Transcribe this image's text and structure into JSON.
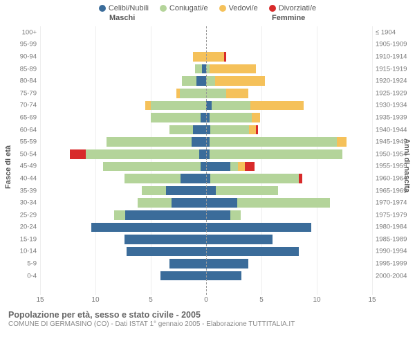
{
  "legend": [
    {
      "label": "Celibi/Nubili",
      "color": "#3b6c9a"
    },
    {
      "label": "Coniugati/e",
      "color": "#b4d49a"
    },
    {
      "label": "Vedovi/e",
      "color": "#f5c15a"
    },
    {
      "label": "Divorziati/e",
      "color": "#d82a2a"
    }
  ],
  "headers": {
    "male": "Maschi",
    "female": "Femmine"
  },
  "y_left_title": "Fasce di età",
  "y_right_title": "Anni di nascita",
  "x_max": 15,
  "x_ticks": [
    15,
    10,
    5,
    0,
    5,
    10,
    15
  ],
  "colors": {
    "single": "#3b6c9a",
    "married": "#b4d49a",
    "widowed": "#f5c15a",
    "divorced": "#d82a2a",
    "grid": "#eeeeee",
    "centerline": "#999999",
    "background": "#ffffff"
  },
  "rows": [
    {
      "age": "100+",
      "birth": "≤ 1904",
      "m": [
        0,
        0,
        0,
        0
      ],
      "f": [
        0,
        0,
        0,
        0
      ]
    },
    {
      "age": "95-99",
      "birth": "1905-1909",
      "m": [
        0,
        0,
        0,
        0
      ],
      "f": [
        0,
        0,
        0,
        0
      ]
    },
    {
      "age": "90-94",
      "birth": "1910-1914",
      "m": [
        0,
        0,
        1.2,
        0
      ],
      "f": [
        0,
        0,
        1.6,
        0.2
      ]
    },
    {
      "age": "85-89",
      "birth": "1915-1919",
      "m": [
        0.4,
        0.6,
        0,
        0
      ],
      "f": [
        0,
        0.3,
        4.2,
        0
      ]
    },
    {
      "age": "80-84",
      "birth": "1920-1924",
      "m": [
        0.9,
        1.3,
        0,
        0
      ],
      "f": [
        0,
        0.8,
        4.5,
        0
      ]
    },
    {
      "age": "75-79",
      "birth": "1925-1929",
      "m": [
        0,
        2.4,
        0.3,
        0
      ],
      "f": [
        0,
        1.8,
        2.0,
        0
      ]
    },
    {
      "age": "70-74",
      "birth": "1930-1934",
      "m": [
        0,
        5.0,
        0.5,
        0
      ],
      "f": [
        0.5,
        3.5,
        4.8,
        0
      ]
    },
    {
      "age": "65-69",
      "birth": "1935-1939",
      "m": [
        0.5,
        4.5,
        0,
        0
      ],
      "f": [
        0.3,
        3.8,
        0.8,
        0
      ]
    },
    {
      "age": "60-64",
      "birth": "1940-1944",
      "m": [
        1.2,
        2.1,
        0,
        0
      ],
      "f": [
        0.4,
        3.5,
        0.6,
        0.2
      ]
    },
    {
      "age": "55-59",
      "birth": "1945-1949",
      "m": [
        1.3,
        7.7,
        0,
        0
      ],
      "f": [
        0.3,
        11.5,
        0.9,
        0
      ]
    },
    {
      "age": "50-54",
      "birth": "1950-1954",
      "m": [
        0.6,
        10.3,
        0,
        1.4
      ],
      "f": [
        0.3,
        12.0,
        0,
        0
      ]
    },
    {
      "age": "45-49",
      "birth": "1955-1959",
      "m": [
        0.5,
        8.8,
        0,
        0
      ],
      "f": [
        2.2,
        0.7,
        0.6,
        0.9
      ]
    },
    {
      "age": "40-44",
      "birth": "1960-1964",
      "m": [
        2.3,
        5.1,
        0,
        0
      ],
      "f": [
        0.4,
        8.0,
        0,
        0.3
      ]
    },
    {
      "age": "35-39",
      "birth": "1965-1969",
      "m": [
        3.6,
        2.2,
        0,
        0
      ],
      "f": [
        0.9,
        5.6,
        0,
        0
      ]
    },
    {
      "age": "30-34",
      "birth": "1970-1974",
      "m": [
        3.1,
        3.1,
        0,
        0
      ],
      "f": [
        2.8,
        8.4,
        0,
        0
      ]
    },
    {
      "age": "25-29",
      "birth": "1975-1979",
      "m": [
        7.3,
        1.0,
        0,
        0
      ],
      "f": [
        2.2,
        0.9,
        0,
        0
      ]
    },
    {
      "age": "20-24",
      "birth": "1980-1984",
      "m": [
        10.4,
        0,
        0,
        0
      ],
      "f": [
        9.5,
        0,
        0,
        0
      ]
    },
    {
      "age": "15-19",
      "birth": "1985-1989",
      "m": [
        7.4,
        0,
        0,
        0
      ],
      "f": [
        6.0,
        0,
        0,
        0
      ]
    },
    {
      "age": "10-14",
      "birth": "1990-1994",
      "m": [
        7.2,
        0,
        0,
        0
      ],
      "f": [
        8.4,
        0,
        0,
        0
      ]
    },
    {
      "age": "5-9",
      "birth": "1995-1999",
      "m": [
        3.3,
        0,
        0,
        0
      ],
      "f": [
        3.8,
        0,
        0,
        0
      ]
    },
    {
      "age": "0-4",
      "birth": "2000-2004",
      "m": [
        4.1,
        0,
        0,
        0
      ],
      "f": [
        3.2,
        0,
        0,
        0
      ]
    }
  ],
  "footer": {
    "title": "Popolazione per età, sesso e stato civile - 2005",
    "subtitle": "COMUNE DI GERMASINO (CO) - Dati ISTAT 1° gennaio 2005 - Elaborazione TUTTITALIA.IT"
  }
}
